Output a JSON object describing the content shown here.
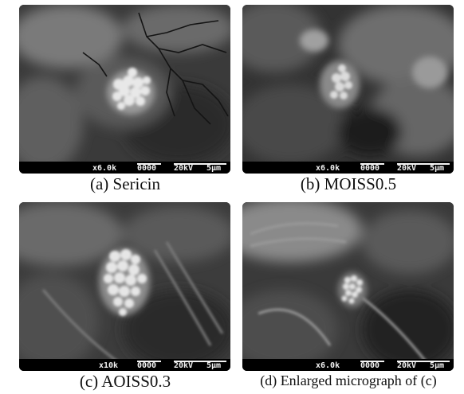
{
  "panels": [
    {
      "caption": "(a)  Sericin",
      "scalebar": {
        "magnification": "x6.0k",
        "image_id": "0000",
        "voltage": "20kV",
        "length": "5μm"
      }
    },
    {
      "caption": "(b)  MOISS0.5",
      "scalebar": {
        "magnification": "x6.0k",
        "image_id": "0000",
        "voltage": "20kV",
        "length": "5μm"
      }
    },
    {
      "caption": "(c)  AOISS0.3",
      "scalebar": {
        "magnification": "x10k",
        "image_id": "0000",
        "voltage": "20kV",
        "length": "5μm"
      }
    },
    {
      "caption": "(d) Enlarged micrograph of (c)",
      "scalebar": {
        "magnification": "x6.0k",
        "image_id": "0000",
        "voltage": "20kV",
        "length": "5μm"
      }
    }
  ]
}
